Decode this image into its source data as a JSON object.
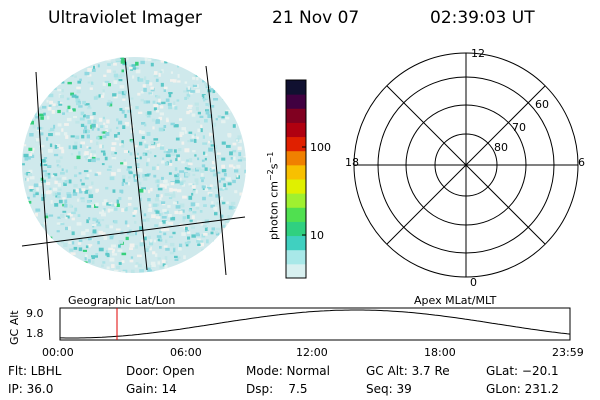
{
  "header": {
    "instrument": "Ultraviolet Imager",
    "date": "21 Nov 07",
    "time": "02:39:03 UT"
  },
  "colorbar": {
    "unit_label": "photon cm",
    "unit_exp1": "−2",
    "unit_s": "s",
    "unit_exp2": "−1",
    "tick_100": "100",
    "tick_10": "10",
    "colors": [
      "#d8f0f0",
      "#a8e8e8",
      "#40d0c0",
      "#30d080",
      "#50e050",
      "#a0f030",
      "#e0f000",
      "#f8c000",
      "#f08000",
      "#e02000",
      "#b00010",
      "#800020",
      "#400040",
      "#101030"
    ]
  },
  "polar": {
    "label_top": "12",
    "label_left": "18",
    "label_right": "6",
    "label_bottom": "0",
    "ring_60": "60",
    "ring_70": "70",
    "ring_80": "80"
  },
  "timeline": {
    "left_title": "Geographic Lat/Lon",
    "right_title": "Apex MLat/MLT",
    "axis_title": "GC Alt",
    "y_max": "9.0",
    "y_min": "1.8",
    "ticks": [
      "00:00",
      "06:00",
      "12:00",
      "18:00",
      "23:59"
    ]
  },
  "info": {
    "flt": "Flt: LBHL",
    "ip": "IP: 36.0",
    "door": "Door: Open",
    "gain": "Gain: 14",
    "mode": "Mode: Normal",
    "dsp": "Dsp:    7.5",
    "gcalt": "GC Alt: 3.7 Re",
    "seq": "Seq: 39",
    "glat": "GLat: −20.1",
    "glon": "GLon: 231.2"
  }
}
